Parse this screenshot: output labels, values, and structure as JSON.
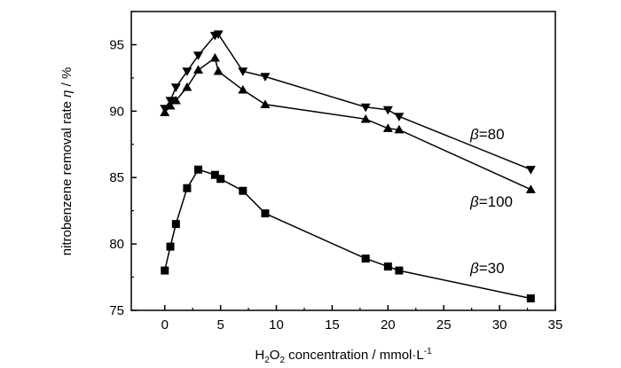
{
  "chart_data": {
    "type": "line",
    "xlabel": {
      "prefix": "H",
      "sub1": "2",
      "mid": "O",
      "sub2": "2",
      "suffix": " concentration / mmol·L",
      "sup": "-1"
    },
    "ylabel": {
      "text": "nitrobenzene removal rate ",
      "symbol": "η",
      "unit": " / %"
    },
    "xlim": [
      -3,
      35
    ],
    "ylim": [
      75,
      97.5
    ],
    "xticks": [
      0,
      5,
      10,
      15,
      20,
      25,
      30,
      35
    ],
    "yticks": [
      75,
      80,
      85,
      90,
      95
    ],
    "grid": false,
    "series": [
      {
        "name": "β=80",
        "symbol": "β",
        "value": "=80",
        "marker": "triangle-down",
        "x": [
          0,
          0.5,
          1,
          2,
          3,
          4.5,
          4.8,
          7,
          9,
          18,
          20,
          21,
          32.8
        ],
        "y": [
          90.2,
          90.8,
          91.8,
          93.0,
          94.2,
          95.7,
          95.8,
          93.0,
          92.6,
          90.3,
          90.1,
          89.6,
          85.6
        ]
      },
      {
        "name": "β=100",
        "symbol": "β",
        "value": "=100",
        "marker": "triangle-up",
        "x": [
          0,
          0.5,
          1,
          2,
          3,
          4.5,
          4.8,
          7,
          9,
          18,
          20,
          21,
          32.8
        ],
        "y": [
          89.9,
          90.4,
          90.8,
          91.8,
          93.1,
          94.0,
          93.0,
          91.6,
          90.5,
          89.4,
          88.7,
          88.6,
          84.1
        ]
      },
      {
        "name": "β=30",
        "symbol": "β",
        "value": "=30",
        "marker": "square",
        "x": [
          0,
          0.5,
          1,
          2,
          3,
          4.5,
          5,
          7,
          9,
          18,
          20,
          21,
          32.8
        ],
        "y": [
          78.0,
          79.8,
          81.5,
          84.2,
          85.6,
          85.2,
          84.9,
          84.0,
          82.3,
          78.9,
          78.3,
          78.0,
          75.9
        ]
      }
    ]
  }
}
